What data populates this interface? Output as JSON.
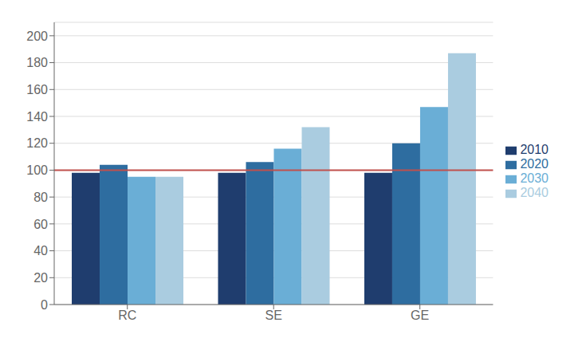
{
  "chart_data": {
    "type": "bar",
    "categories": [
      "RC",
      "SE",
      "GE"
    ],
    "series": [
      {
        "name": "2010",
        "color": "#1F3D6E",
        "values": [
          98,
          98,
          98
        ]
      },
      {
        "name": "2020",
        "color": "#2E6DA0",
        "values": [
          104,
          106,
          120
        ]
      },
      {
        "name": "2030",
        "color": "#6AAED6",
        "values": [
          95,
          116,
          147
        ]
      },
      {
        "name": "2040",
        "color": "#AACCE0",
        "values": [
          95,
          132,
          187
        ]
      }
    ],
    "reference_lines": [
      {
        "y": 100,
        "color": "#C0504D"
      }
    ],
    "ylim": [
      0,
      210
    ],
    "yticks": [
      0,
      20,
      40,
      60,
      80,
      100,
      120,
      140,
      160,
      180,
      200
    ],
    "grid": true,
    "legend": "right"
  }
}
